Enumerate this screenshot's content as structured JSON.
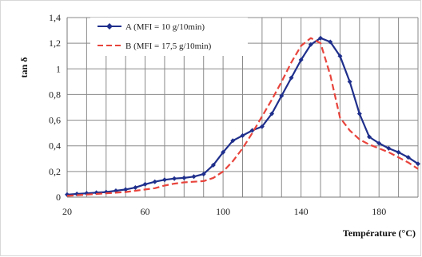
{
  "chart_data": {
    "type": "line",
    "title": "",
    "xlabel": "Température (°C)",
    "ylabel": "tan δ",
    "xlim": [
      20,
      200
    ],
    "ylim": [
      0,
      1.4
    ],
    "x_ticks": [
      "20",
      "60",
      "100",
      "140",
      "180"
    ],
    "x_tick_values": [
      20,
      60,
      100,
      140,
      180
    ],
    "y_ticks": [
      "0",
      "0,2",
      "0,4",
      "0,6",
      "0,8",
      "1",
      "1,2",
      "1,4"
    ],
    "y_tick_values": [
      0,
      0.2,
      0.4,
      0.6,
      0.8,
      1.0,
      1.2,
      1.4
    ],
    "grid": true,
    "legend_position": "top-left",
    "series": [
      {
        "name": "A (MFI = 10 g/10min)",
        "color": "#1f2f8c",
        "marker": "diamond",
        "line_style": "solid",
        "x": [
          20,
          25,
          30,
          35,
          40,
          45,
          50,
          55,
          60,
          65,
          70,
          75,
          80,
          85,
          90,
          95,
          100,
          105,
          110,
          115,
          120,
          125,
          130,
          135,
          140,
          145,
          150,
          155,
          160,
          165,
          170,
          175,
          180,
          185,
          190,
          195,
          200
        ],
        "y": [
          0.02,
          0.025,
          0.03,
          0.035,
          0.04,
          0.05,
          0.06,
          0.075,
          0.1,
          0.12,
          0.135,
          0.145,
          0.15,
          0.16,
          0.18,
          0.25,
          0.35,
          0.44,
          0.48,
          0.52,
          0.55,
          0.65,
          0.79,
          0.93,
          1.07,
          1.19,
          1.24,
          1.21,
          1.1,
          0.9,
          0.65,
          0.47,
          0.42,
          0.38,
          0.35,
          0.31,
          0.26
        ]
      },
      {
        "name": "B (MFI = 17,5 g/10min)",
        "color": "#e8443c",
        "marker": "none",
        "line_style": "dashed",
        "x": [
          20,
          25,
          30,
          35,
          40,
          45,
          50,
          55,
          60,
          65,
          70,
          75,
          80,
          85,
          90,
          95,
          100,
          105,
          110,
          115,
          120,
          125,
          130,
          135,
          140,
          145,
          150,
          155,
          160,
          165,
          170,
          175,
          180,
          185,
          190,
          195,
          200
        ],
        "y": [
          0.01,
          0.015,
          0.02,
          0.025,
          0.03,
          0.035,
          0.04,
          0.05,
          0.06,
          0.07,
          0.09,
          0.105,
          0.115,
          0.12,
          0.125,
          0.15,
          0.2,
          0.28,
          0.38,
          0.5,
          0.63,
          0.76,
          0.9,
          1.05,
          1.18,
          1.24,
          1.2,
          0.95,
          0.62,
          0.52,
          0.45,
          0.41,
          0.38,
          0.35,
          0.31,
          0.27,
          0.22
        ]
      }
    ]
  }
}
